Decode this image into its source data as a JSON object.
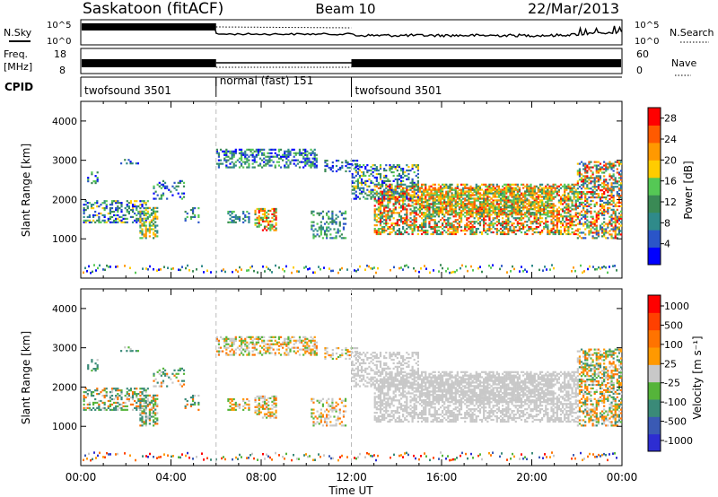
{
  "header": {
    "station": "Saskatoon (fitACF)",
    "beam": "Beam 10",
    "date": "22/Mar/2013"
  },
  "sky_panel": {
    "left_label": "N.Sky",
    "right_label": "N.Search",
    "ticks": [
      "10^5",
      "10^0"
    ]
  },
  "freq_panel": {
    "left_label_line1": "Freq.",
    "left_label_line2": "[MHz]",
    "left_ticks": [
      "18",
      "8"
    ],
    "right_ticks": [
      "60",
      "0"
    ],
    "right_label": "Nave"
  },
  "cpid_panel": {
    "label": "CPID",
    "segments": [
      {
        "label": "twofsound 3501",
        "start_hour": 0,
        "end_hour": 6
      },
      {
        "label": "normal (fast) 151",
        "start_hour": 6,
        "end_hour": 12
      },
      {
        "label": "twofsound 3501",
        "start_hour": 12,
        "end_hour": 24
      }
    ]
  },
  "colors": {
    "power": [
      "#0000ff",
      "#2a55c8",
      "#2f8a8a",
      "#3a8a55",
      "#55c855",
      "#ffcc00",
      "#ff9900",
      "#ff5a00",
      "#ff0000"
    ],
    "velocity": [
      "#2d2dd2",
      "#3a5ab4",
      "#3a8a78",
      "#55b43a",
      "#c8c8c8",
      "#ff9900",
      "#ff7300",
      "#ff4000",
      "#ff0000"
    ]
  },
  "chart_data": [
    {
      "type": "heatmap",
      "title": "",
      "xlabel": "Time UT",
      "ylabel": "Slant Range [km]",
      "x_ticks": [
        "00:00",
        "04:00",
        "08:00",
        "12:00",
        "16:00",
        "20:00",
        "00:00"
      ],
      "xlim": [
        0,
        24
      ],
      "y_ticks": [
        "1000",
        "2000",
        "3000",
        "4000"
      ],
      "ylim": [
        0,
        4500
      ],
      "colorbar_label": "Power [dB]",
      "colorbar_ticks": [
        "4",
        "8",
        "12",
        "16",
        "20",
        "24",
        "28"
      ],
      "colorbar_range": [
        0,
        30
      ]
    },
    {
      "type": "heatmap",
      "title": "",
      "xlabel": "Time UT",
      "ylabel": "Slant Range [km]",
      "x_ticks": [
        "00:00",
        "04:00",
        "08:00",
        "12:00",
        "16:00",
        "20:00",
        "00:00"
      ],
      "xlim": [
        0,
        24
      ],
      "y_ticks": [
        "1000",
        "2000",
        "3000",
        "4000"
      ],
      "ylim": [
        0,
        4500
      ],
      "colorbar_label": "Velocity [m s⁻¹]",
      "colorbar_ticks": [
        "1000",
        "500",
        "100",
        "25",
        "-25",
        "-100",
        "-500",
        "-1000"
      ]
    }
  ]
}
